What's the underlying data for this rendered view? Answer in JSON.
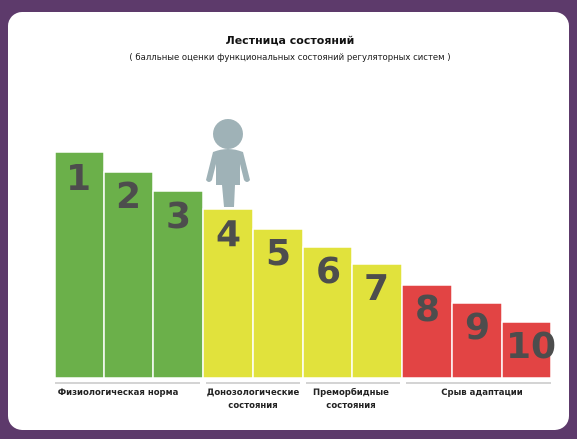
{
  "header": {
    "title": "Лестница состояний",
    "subtitle": "( балльные оценки функциональных состояний регуляторных систем )"
  },
  "steps": [
    "1",
    "2",
    "3",
    "4",
    "5",
    "6",
    "7",
    "8",
    "9",
    "10"
  ],
  "groups": [
    {
      "lines": [
        "Физиологическая норма"
      ]
    },
    {
      "lines": [
        "Донозологические",
        "состояния"
      ]
    },
    {
      "lines": [
        "Преморбидные",
        "состояния"
      ]
    },
    {
      "lines": [
        "Срыв адаптации"
      ]
    }
  ]
}
